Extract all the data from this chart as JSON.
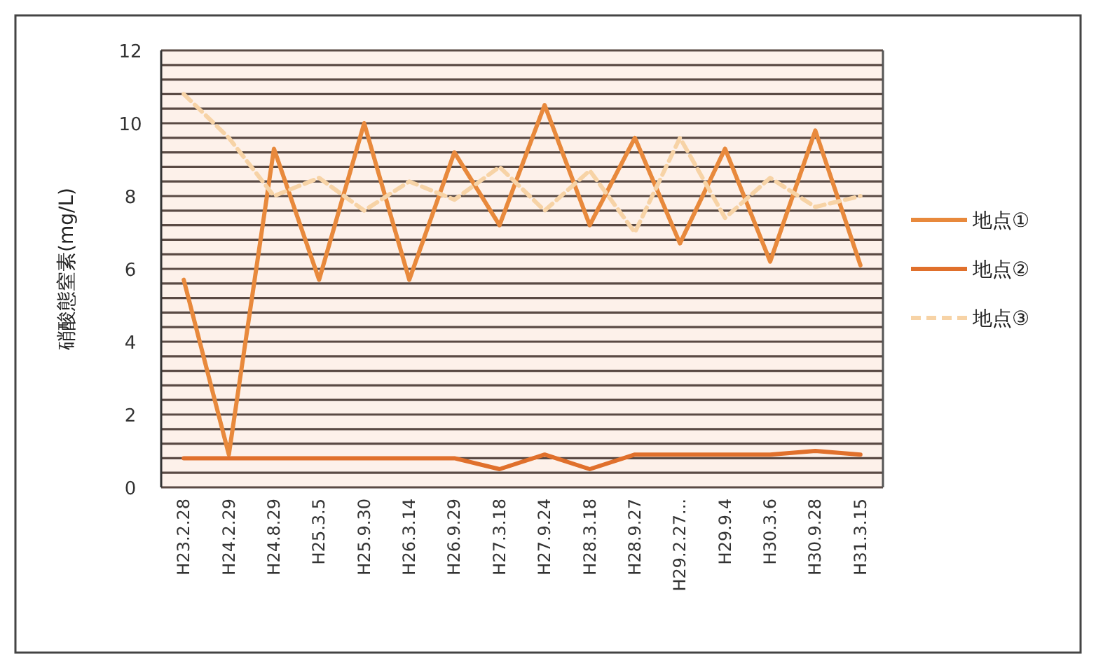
{
  "chart_data": {
    "type": "line",
    "ylabel": "硝酸態窒素(mg/L)",
    "categories": [
      "H23.2.28",
      "H24.2.29",
      "H24.8.29",
      "H25.3.5",
      "H25.9.30",
      "H26.3.14",
      "H26.9.29",
      "H27.3.18",
      "H27.9.24",
      "H28.3.18",
      "H28.9.27",
      "H29.2.27...",
      "H29.9.4",
      "H30.3.6",
      "H30.9.28",
      "H31.3.15"
    ],
    "series": [
      {
        "name": "地点①",
        "color": "#e8893c",
        "values": [
          5.7,
          0.9,
          9.3,
          5.7,
          10.0,
          5.7,
          9.2,
          7.2,
          10.5,
          7.2,
          9.6,
          6.7,
          9.3,
          6.2,
          9.8,
          6.1
        ]
      },
      {
        "name": "地点②",
        "color": "#e0702c",
        "values": [
          0.8,
          0.8,
          0.8,
          0.8,
          0.8,
          0.8,
          0.8,
          0.5,
          0.9,
          0.5,
          0.9,
          0.9,
          0.9,
          0.9,
          1.0,
          0.9
        ]
      },
      {
        "name": "地点③",
        "color": "#f7d3a6",
        "line_style": "dashed",
        "values": [
          10.8,
          9.6,
          8.0,
          8.5,
          7.6,
          8.4,
          7.9,
          8.8,
          7.6,
          8.7,
          7.0,
          9.6,
          7.4,
          8.5,
          7.7,
          8.0
        ]
      }
    ],
    "ylim": [
      0,
      12
    ],
    "yticks": [
      0,
      2,
      4,
      6,
      8,
      10,
      12
    ],
    "grid": "y",
    "legend": "right",
    "marker": "none"
  }
}
